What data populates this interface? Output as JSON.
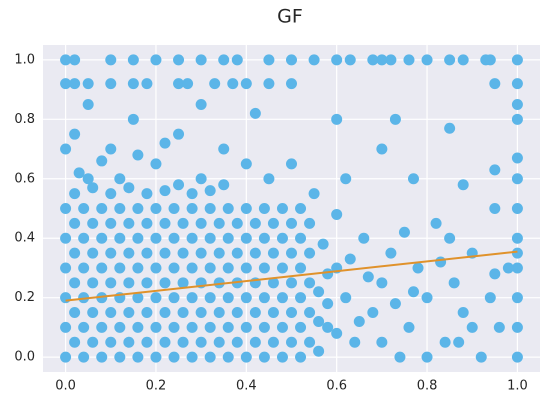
{
  "chart_data": {
    "type": "scatter",
    "title": "GF",
    "color": "#5bb5e8",
    "marker_radius": 5.5,
    "grid": true,
    "xlim": [
      -0.05,
      1.05
    ],
    "ylim": [
      -0.05,
      1.05
    ],
    "xticks": [
      {
        "value": 0,
        "label": "0.0"
      },
      0.2,
      0.4,
      0.6,
      0.8,
      {
        "value": 1,
        "label": "1.0"
      }
    ],
    "yticks": [
      {
        "value": 0,
        "label": "0.0"
      },
      0.2,
      0.4,
      0.6,
      0.8,
      {
        "value": 1,
        "label": "1.0"
      }
    ],
    "x": [
      0,
      0.04,
      0.08,
      0.12,
      0.16,
      0.2,
      0.24,
      0.28,
      0.32,
      0.36,
      0.4,
      0.44,
      0.48,
      0.52,
      0.02,
      0.06,
      0.1,
      0.14,
      0.18,
      0.22,
      0.26,
      0.3,
      0.34,
      0.38,
      0.42,
      0.46,
      0.5,
      0.54,
      0,
      0.04,
      0.08,
      0.12,
      0.16,
      0.2,
      0.24,
      0.28,
      0.32,
      0.36,
      0.4,
      0.44,
      0.48,
      0.52,
      0.02,
      0.06,
      0.1,
      0.14,
      0.18,
      0.22,
      0.26,
      0.3,
      0.34,
      0.38,
      0.42,
      0.46,
      0.5,
      0.54,
      0,
      0.04,
      0.08,
      0.12,
      0.16,
      0.2,
      0.24,
      0.28,
      0.32,
      0.36,
      0.4,
      0.44,
      0.48,
      0.52,
      0.02,
      0.06,
      0.1,
      0.14,
      0.18,
      0.22,
      0.26,
      0.3,
      0.34,
      0.38,
      0.42,
      0.46,
      0.5,
      0.54,
      0,
      0.04,
      0.08,
      0.12,
      0.16,
      0.2,
      0.24,
      0.28,
      0.32,
      0.36,
      0.4,
      0.44,
      0.48,
      0.52,
      0.02,
      0.06,
      0.1,
      0.14,
      0.18,
      0.22,
      0.26,
      0.3,
      0.34,
      0.38,
      0.42,
      0.46,
      0.5,
      0.54,
      0,
      0.04,
      0.08,
      0.12,
      0.16,
      0.2,
      0.24,
      0.28,
      0.32,
      0.36,
      0.4,
      0.44,
      0.48,
      0.52,
      0.02,
      0.06,
      0.1,
      0.14,
      0.18,
      0.22,
      0.26,
      0.3,
      0.34,
      0.38,
      0.42,
      0.46,
      0.5,
      0.54,
      0,
      0.04,
      0.08,
      0.12,
      0.16,
      0.2,
      0.24,
      0.28,
      0.32,
      0.36,
      0.4,
      0.44,
      0.48,
      0.52,
      0.0,
      0.02,
      0.1,
      0.15,
      0.2,
      0.25,
      0.3,
      0.35,
      0.38,
      0.45,
      0.5,
      0.55,
      0.6,
      0.63,
      0.68,
      0.7,
      0.72,
      0.76,
      0.8,
      0.85,
      0.88,
      0.93,
      0.94,
      1.0,
      0.0,
      0.02,
      0.05,
      0.1,
      0.15,
      0.18,
      0.25,
      0.27,
      0.33,
      0.37,
      0.4,
      0.45,
      0.5,
      0.95,
      1.0,
      1,
      1,
      1,
      1,
      1,
      1,
      1,
      1,
      1,
      1,
      1,
      0.02,
      0.05,
      0.1,
      0.15,
      0.2,
      0.25,
      0.3,
      0.35,
      0.4,
      0.42,
      0.45,
      0.5,
      0.55,
      0.6,
      0.62,
      0.7,
      0.73,
      0.77,
      0.85,
      0.88,
      0.95,
      0.95,
      0.05,
      0.12,
      0.3,
      0.35,
      0.25,
      0.18,
      0.58,
      0.6,
      0.62,
      0.64,
      0.66,
      0.68,
      0.7,
      0.72,
      0.74,
      0.76,
      0.78,
      0.8,
      0.82,
      0.84,
      0.86,
      0.88,
      0.9,
      0.92,
      0.94,
      0.96,
      0.98,
      0.6,
      0.65,
      0.7,
      0.75,
      0.8,
      0.85,
      0.9,
      0.95,
      0.57,
      0.63,
      0.67,
      0.73,
      0.77,
      0.83,
      0.87,
      0.56,
      0.56,
      0.56,
      0.58,
      0.58,
      0.6,
      0.02,
      0.06,
      0.1,
      0.14,
      0.22,
      0.28,
      0.32,
      0,
      0.08,
      0.16,
      0.22,
      0.03
    ],
    "y": [
      0,
      0,
      0,
      0,
      0,
      0,
      0,
      0,
      0,
      0,
      0,
      0,
      0,
      0,
      0.05,
      0.05,
      0.05,
      0.05,
      0.05,
      0.05,
      0.05,
      0.05,
      0.05,
      0.05,
      0.05,
      0.05,
      0.05,
      0.05,
      0.1,
      0.1,
      0.1,
      0.1,
      0.1,
      0.1,
      0.1,
      0.1,
      0.1,
      0.1,
      0.1,
      0.1,
      0.1,
      0.1,
      0.15,
      0.15,
      0.15,
      0.15,
      0.15,
      0.15,
      0.15,
      0.15,
      0.15,
      0.15,
      0.15,
      0.15,
      0.15,
      0.15,
      0.2,
      0.2,
      0.2,
      0.2,
      0.2,
      0.2,
      0.2,
      0.2,
      0.2,
      0.2,
      0.2,
      0.2,
      0.2,
      0.2,
      0.25,
      0.25,
      0.25,
      0.25,
      0.25,
      0.25,
      0.25,
      0.25,
      0.25,
      0.25,
      0.25,
      0.25,
      0.25,
      0.25,
      0.3,
      0.3,
      0.3,
      0.3,
      0.3,
      0.3,
      0.3,
      0.3,
      0.3,
      0.3,
      0.3,
      0.3,
      0.3,
      0.3,
      0.35,
      0.35,
      0.35,
      0.35,
      0.35,
      0.35,
      0.35,
      0.35,
      0.35,
      0.35,
      0.35,
      0.35,
      0.35,
      0.35,
      0.4,
      0.4,
      0.4,
      0.4,
      0.4,
      0.4,
      0.4,
      0.4,
      0.4,
      0.4,
      0.4,
      0.4,
      0.4,
      0.4,
      0.45,
      0.45,
      0.45,
      0.45,
      0.45,
      0.45,
      0.45,
      0.45,
      0.45,
      0.45,
      0.45,
      0.45,
      0.45,
      0.45,
      0.5,
      0.5,
      0.5,
      0.5,
      0.5,
      0.5,
      0.5,
      0.5,
      0.5,
      0.5,
      0.5,
      0.5,
      0.5,
      0.5,
      1,
      1,
      1,
      1,
      1,
      1,
      1,
      1,
      1,
      1,
      1,
      1,
      1,
      1,
      1,
      1,
      1,
      1,
      1,
      1,
      1,
      1,
      1,
      1,
      0.92,
      0.92,
      0.92,
      0.92,
      0.92,
      0.92,
      0.92,
      0.92,
      0.92,
      0.92,
      0.92,
      0.92,
      0.92,
      0.92,
      0.92,
      0.0,
      0.1,
      0.2,
      0.3,
      0.35,
      0.4,
      0.5,
      0.6,
      0.67,
      0.8,
      0.85,
      0.75,
      0.85,
      0.7,
      0.8,
      0.65,
      0.75,
      0.85,
      0.7,
      0.65,
      0.82,
      0.6,
      0.65,
      0.55,
      0.8,
      0.6,
      0.7,
      0.8,
      0.6,
      0.77,
      0.58,
      0.63,
      0.5,
      0.6,
      0.6,
      0.6,
      0.58,
      0.58,
      0.55,
      0.1,
      0.3,
      0.2,
      0.05,
      0.4,
      0.15,
      0.25,
      0.35,
      0,
      0.1,
      0.3,
      0.2,
      0.45,
      0.05,
      0.25,
      0.15,
      0.35,
      0,
      0.2,
      0.1,
      0.3,
      0.48,
      0.12,
      0.05,
      0.42,
      0,
      0.4,
      0.1,
      0.28,
      0.38,
      0.33,
      0.27,
      0.18,
      0.22,
      0.32,
      0.05,
      0.02,
      0.12,
      0.22,
      0.28,
      0.18,
      0.08,
      0.55,
      0.57,
      0.55,
      0.57,
      0.56,
      0.55,
      0.56,
      0.7,
      0.66,
      0.68,
      0.72,
      0.62
    ],
    "fit": {
      "x": [
        0,
        1
      ],
      "y": [
        0.19,
        0.355
      ],
      "color": "#e0922b"
    }
  }
}
